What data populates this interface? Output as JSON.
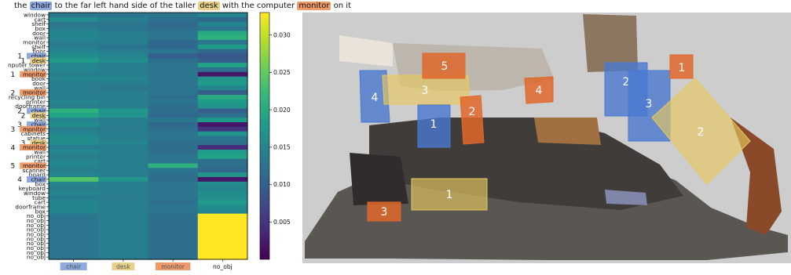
{
  "caption": {
    "parts": [
      {
        "text": "the ",
        "hl": ""
      },
      {
        "text": "chair",
        "hl": "chair"
      },
      {
        "text": " to the far left hand side of the taller ",
        "hl": ""
      },
      {
        "text": "desk",
        "hl": "desk"
      },
      {
        "text": " with the computer ",
        "hl": ""
      },
      {
        "text": "monitor",
        "hl": "monitor"
      },
      {
        "text": " on it",
        "hl": ""
      }
    ]
  },
  "colors": {
    "chair": "#8fa9de",
    "desk": "#e9d08a",
    "monitor": "#ee9a6a",
    "chair_box": "#4a78d0",
    "desk_box": "#e6c860",
    "monitor_box": "#e0672a"
  },
  "chart_data": {
    "type": "heatmap",
    "columns": [
      {
        "label": "chair",
        "hl": "chair"
      },
      {
        "label": "desk",
        "hl": "desk"
      },
      {
        "label": "monitor",
        "hl": "monitor"
      },
      {
        "label": "no_obj",
        "hl": ""
      }
    ],
    "rows": [
      {
        "label": "window",
        "num": "",
        "hl": ""
      },
      {
        "label": "cart",
        "num": "",
        "hl": ""
      },
      {
        "label": "shelf",
        "num": "",
        "hl": ""
      },
      {
        "label": "box",
        "num": "",
        "hl": ""
      },
      {
        "label": "door",
        "num": "",
        "hl": ""
      },
      {
        "label": "wall",
        "num": "",
        "hl": ""
      },
      {
        "label": "monitor",
        "num": "",
        "hl": ""
      },
      {
        "label": "shelf",
        "num": "",
        "hl": ""
      },
      {
        "label": "floor",
        "num": "",
        "hl": ""
      },
      {
        "label": "chair",
        "num": "1",
        "hl": "chair"
      },
      {
        "label": "desk",
        "num": "1",
        "hl": "desk"
      },
      {
        "label": "nputer tower",
        "num": "",
        "hl": ""
      },
      {
        "label": "window",
        "num": "",
        "hl": ""
      },
      {
        "label": "monitor",
        "num": "1",
        "hl": "monitor"
      },
      {
        "label": "book",
        "num": "",
        "hl": ""
      },
      {
        "label": "door",
        "num": "",
        "hl": ""
      },
      {
        "label": "wall",
        "num": "",
        "hl": ""
      },
      {
        "label": "monitor",
        "num": "2",
        "hl": "monitor"
      },
      {
        "label": "recycling bin",
        "num": "",
        "hl": ""
      },
      {
        "label": "printer",
        "num": "",
        "hl": ""
      },
      {
        "label": "doorframe",
        "num": "",
        "hl": ""
      },
      {
        "label": "chair",
        "num": "2",
        "hl": "chair"
      },
      {
        "label": "desk",
        "num": "2",
        "hl": "desk"
      },
      {
        "label": "wall",
        "num": "",
        "hl": ""
      },
      {
        "label": "chair",
        "num": "3",
        "hl": "chair"
      },
      {
        "label": "monitor",
        "num": "3",
        "hl": "monitor"
      },
      {
        "label": "cabinets",
        "num": "",
        "hl": ""
      },
      {
        "label": "statue",
        "num": "",
        "hl": ""
      },
      {
        "label": "desk",
        "num": "3",
        "hl": "desk"
      },
      {
        "label": "monitor",
        "num": "4",
        "hl": "monitor"
      },
      {
        "label": "wall",
        "num": "",
        "hl": ""
      },
      {
        "label": "printer",
        "num": "",
        "hl": ""
      },
      {
        "label": "cart",
        "num": "",
        "hl": ""
      },
      {
        "label": "monitor",
        "num": "5",
        "hl": "monitor"
      },
      {
        "label": "scanner",
        "num": "",
        "hl": ""
      },
      {
        "label": "board",
        "num": "",
        "hl": ""
      },
      {
        "label": "chair",
        "num": "4",
        "hl": "chair"
      },
      {
        "label": "box",
        "num": "",
        "hl": ""
      },
      {
        "label": "keyboard",
        "num": "",
        "hl": ""
      },
      {
        "label": "window",
        "num": "",
        "hl": ""
      },
      {
        "label": "tube",
        "num": "",
        "hl": ""
      },
      {
        "label": "cart",
        "num": "",
        "hl": ""
      },
      {
        "label": "doorframe",
        "num": "",
        "hl": ""
      },
      {
        "label": "box",
        "num": "",
        "hl": ""
      },
      {
        "label": "no_obj",
        "num": "",
        "hl": ""
      },
      {
        "label": "no_obj",
        "num": "",
        "hl": ""
      },
      {
        "label": "no_obj",
        "num": "",
        "hl": ""
      },
      {
        "label": "no_obj",
        "num": "",
        "hl": ""
      },
      {
        "label": "no_obj",
        "num": "",
        "hl": ""
      },
      {
        "label": "no_obj",
        "num": "",
        "hl": ""
      },
      {
        "label": "no_obj",
        "num": "",
        "hl": ""
      },
      {
        "label": "no_obj",
        "num": "",
        "hl": ""
      },
      {
        "label": "no_obj",
        "num": "",
        "hl": ""
      },
      {
        "label": "no_obj",
        "num": "",
        "hl": ""
      }
    ],
    "values": [
      [
        0.013,
        0.013,
        0.013,
        0.015
      ],
      [
        0.016,
        0.014,
        0.012,
        0.011
      ],
      [
        0.013,
        0.013,
        0.011,
        0.015
      ],
      [
        0.014,
        0.013,
        0.012,
        0.013
      ],
      [
        0.015,
        0.014,
        0.013,
        0.02
      ],
      [
        0.015,
        0.014,
        0.013,
        0.021
      ],
      [
        0.014,
        0.014,
        0.011,
        0.013
      ],
      [
        0.014,
        0.013,
        0.011,
        0.018
      ],
      [
        0.015,
        0.014,
        0.013,
        0.011
      ],
      [
        0.016,
        0.015,
        0.01,
        0.009
      ],
      [
        0.018,
        0.016,
        0.012,
        0.01
      ],
      [
        0.015,
        0.014,
        0.013,
        0.019
      ],
      [
        0.015,
        0.014,
        0.013,
        0.012
      ],
      [
        0.014,
        0.014,
        0.013,
        0.002
      ],
      [
        0.015,
        0.015,
        0.013,
        0.017
      ],
      [
        0.014,
        0.014,
        0.013,
        0.018
      ],
      [
        0.014,
        0.013,
        0.013,
        0.015
      ],
      [
        0.014,
        0.014,
        0.013,
        0.01
      ],
      [
        0.014,
        0.014,
        0.012,
        0.02
      ],
      [
        0.015,
        0.014,
        0.013,
        0.018
      ],
      [
        0.014,
        0.014,
        0.012,
        0.017
      ],
      [
        0.021,
        0.017,
        0.012,
        0.01
      ],
      [
        0.019,
        0.017,
        0.011,
        0.012
      ],
      [
        0.015,
        0.014,
        0.013,
        0.018
      ],
      [
        0.016,
        0.014,
        0.011,
        0.002
      ],
      [
        0.014,
        0.014,
        0.012,
        0.005
      ],
      [
        0.015,
        0.014,
        0.013,
        0.017
      ],
      [
        0.016,
        0.014,
        0.013,
        0.013
      ],
      [
        0.016,
        0.015,
        0.012,
        0.012
      ],
      [
        0.014,
        0.014,
        0.012,
        0.004
      ],
      [
        0.015,
        0.014,
        0.012,
        0.018
      ],
      [
        0.014,
        0.014,
        0.013,
        0.019
      ],
      [
        0.015,
        0.014,
        0.013,
        0.012
      ],
      [
        0.015,
        0.014,
        0.021,
        0.012
      ],
      [
        0.014,
        0.014,
        0.013,
        0.011
      ],
      [
        0.015,
        0.014,
        0.012,
        0.017
      ],
      [
        0.024,
        0.017,
        0.012,
        0.002
      ],
      [
        0.015,
        0.014,
        0.013,
        0.016
      ],
      [
        0.014,
        0.014,
        0.013,
        0.015
      ],
      [
        0.015,
        0.014,
        0.013,
        0.016
      ],
      [
        0.014,
        0.014,
        0.013,
        0.016
      ],
      [
        0.015,
        0.014,
        0.012,
        0.018
      ],
      [
        0.015,
        0.014,
        0.013,
        0.016
      ],
      [
        0.015,
        0.014,
        0.013,
        0.015
      ],
      [
        0.013,
        0.014,
        0.012,
        0.033
      ],
      [
        0.013,
        0.014,
        0.012,
        0.033
      ],
      [
        0.013,
        0.014,
        0.012,
        0.033
      ],
      [
        0.013,
        0.014,
        0.012,
        0.033
      ],
      [
        0.013,
        0.014,
        0.012,
        0.033
      ],
      [
        0.013,
        0.014,
        0.012,
        0.033
      ],
      [
        0.013,
        0.014,
        0.012,
        0.033
      ],
      [
        0.013,
        0.014,
        0.012,
        0.033
      ],
      [
        0.013,
        0.014,
        0.012,
        0.033
      ],
      [
        0.013,
        0.014,
        0.012,
        0.033
      ]
    ],
    "colorbar": {
      "min": 0.0,
      "max": 0.033,
      "ticks": [
        "0.005",
        "0.010",
        "0.015",
        "0.020",
        "0.025",
        "0.030"
      ]
    }
  },
  "scene": {
    "boxes": [
      {
        "id": "chair-4",
        "label": "4",
        "kind": "chair"
      },
      {
        "id": "desk-3",
        "label": "3",
        "kind": "desk"
      },
      {
        "id": "monitor-5",
        "label": "5",
        "kind": "monitor"
      },
      {
        "id": "monitor-2",
        "label": "2",
        "kind": "monitor"
      },
      {
        "id": "chair-1",
        "label": "1",
        "kind": "chair"
      },
      {
        "id": "monitor-4",
        "label": "4",
        "kind": "monitor"
      },
      {
        "id": "chair-2",
        "label": "2",
        "kind": "chair"
      },
      {
        "id": "chair-3",
        "label": "3",
        "kind": "chair"
      },
      {
        "id": "monitor-1",
        "label": "1",
        "kind": "monitor"
      },
      {
        "id": "desk-2",
        "label": "2",
        "kind": "desk"
      },
      {
        "id": "desk-1",
        "label": "1",
        "kind": "desk"
      },
      {
        "id": "monitor-3",
        "label": "3",
        "kind": "monitor"
      }
    ]
  }
}
